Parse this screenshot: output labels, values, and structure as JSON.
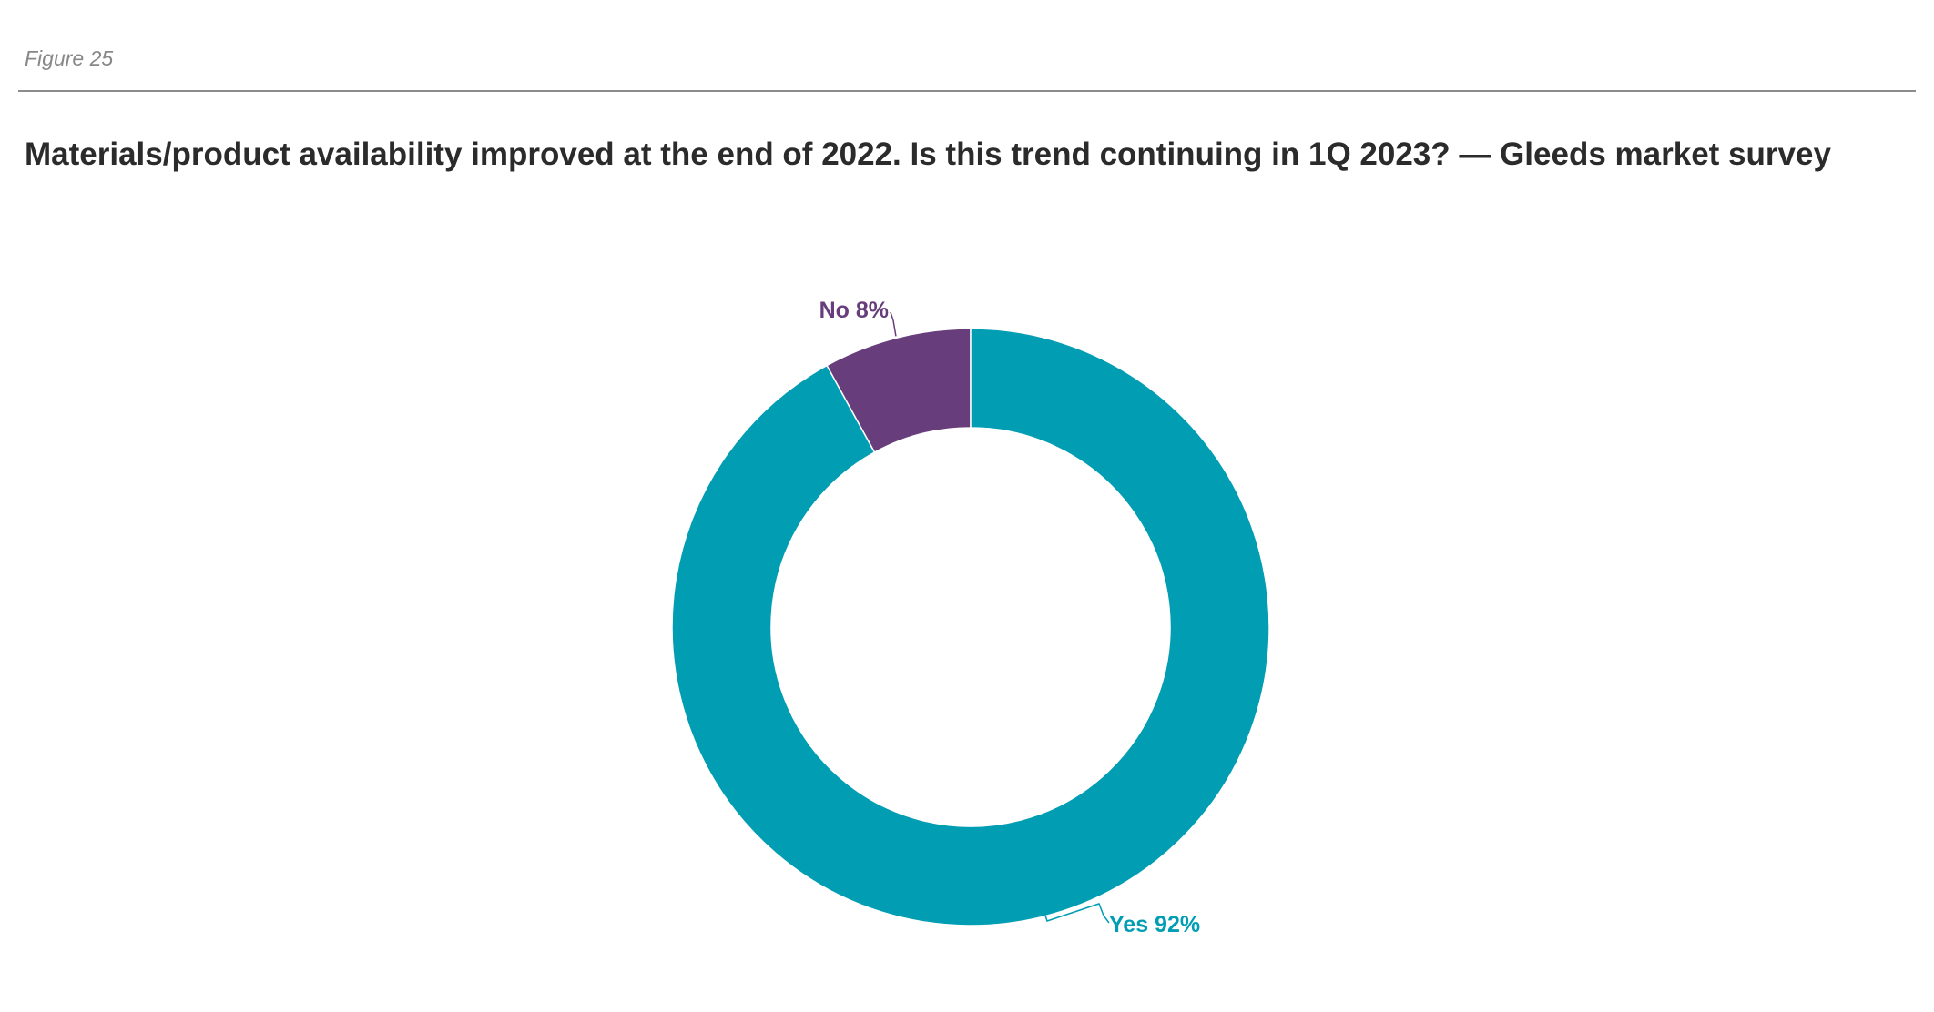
{
  "figure": {
    "label": "Figure 25"
  },
  "chart_data": {
    "type": "pie",
    "variant": "donut",
    "title": "Materials/product availability improved at the end of 2022. Is this trend continuing in 1Q 2023? — Gleeds market survey",
    "categories": [
      "No",
      "Yes"
    ],
    "values": [
      8,
      92
    ],
    "unit": "%",
    "colors": [
      "#673d7b",
      "#009db3"
    ],
    "data_labels": [
      "No 8%",
      "Yes 92%"
    ]
  }
}
